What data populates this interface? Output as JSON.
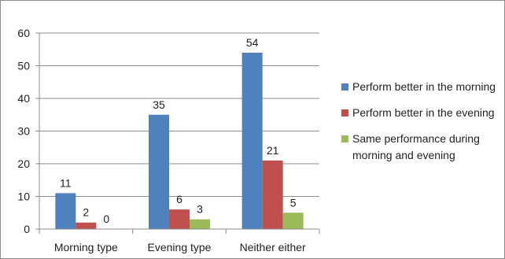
{
  "chart_data": {
    "type": "bar",
    "categories": [
      "Morning type",
      "Evening type",
      "Neither either"
    ],
    "series": [
      {
        "name": "Perform better in the morning",
        "values": [
          11,
          35,
          54
        ],
        "color": "#4f81bd"
      },
      {
        "name": "Perform better in the evening",
        "values": [
          2,
          6,
          21
        ],
        "color": "#c0504d"
      },
      {
        "name": "Same performance during morning and evening",
        "values": [
          0,
          3,
          5
        ],
        "color": "#9bbb59"
      }
    ],
    "ylim": [
      0,
      60
    ],
    "yticks": [
      0,
      10,
      20,
      30,
      40,
      50,
      60
    ],
    "grid": true,
    "legend_position": "right",
    "data_labels": true,
    "title": "",
    "xlabel": "",
    "ylabel": ""
  }
}
